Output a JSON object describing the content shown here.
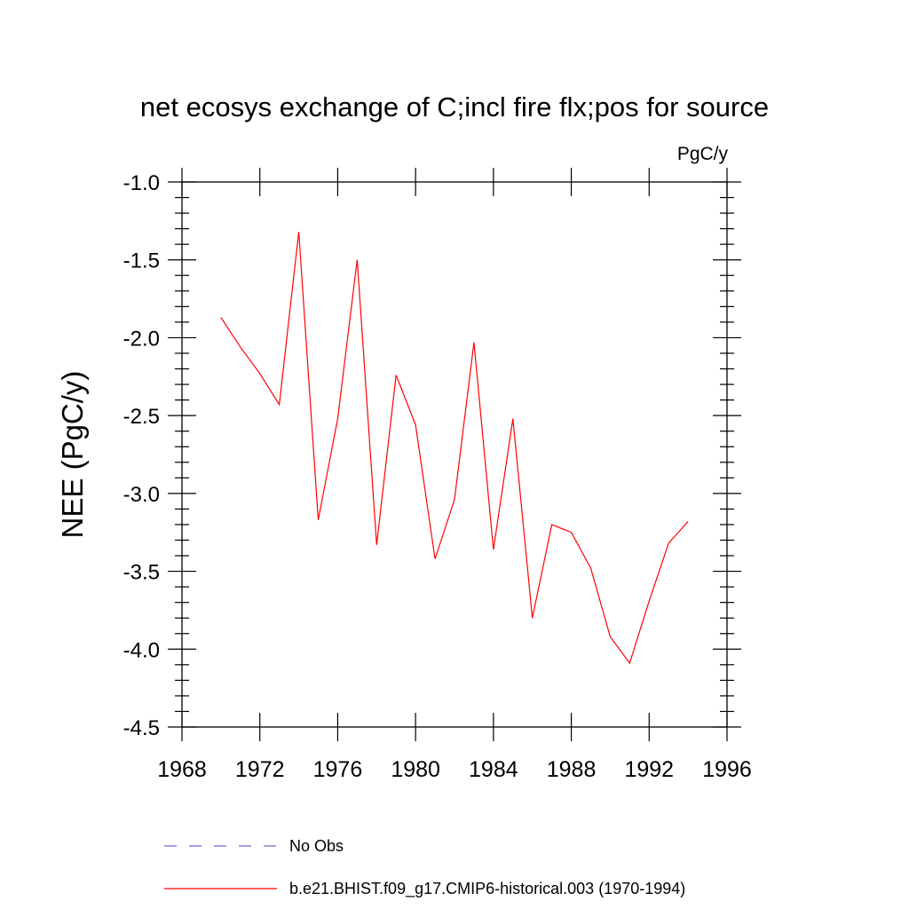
{
  "chart_data": {
    "type": "line",
    "title": "net ecosys exchange of C;incl fire flx;pos for source",
    "units_label": "PgC/y",
    "ylabel": "NEE  (PgC/y)",
    "xlabel": "",
    "xlim": [
      1968,
      1996
    ],
    "ylim": [
      -4.5,
      -1.0
    ],
    "x_ticks": [
      1968,
      1972,
      1976,
      1980,
      1984,
      1988,
      1992,
      1996
    ],
    "x_tick_labels": [
      "1968",
      "1972",
      "1976",
      "1980",
      "1984",
      "1988",
      "1992",
      "1996"
    ],
    "y_ticks": [
      -1.0,
      -1.5,
      -2.0,
      -2.5,
      -3.0,
      -3.5,
      -4.0,
      -4.5
    ],
    "y_tick_labels": [
      "-1.0",
      "-1.5",
      "-2.0",
      "-2.5",
      "-3.0",
      "-3.5",
      "-4.0",
      "-4.5"
    ],
    "grid": false,
    "legend_position": "bottom",
    "series": [
      {
        "name": "No Obs",
        "color": "#6a6ad0",
        "style": "dashed",
        "x": [],
        "values": []
      },
      {
        "name": "b.e21.BHIST.f09_g17.CMIP6-historical.003 (1970-1994)",
        "color": "#ff0000",
        "style": "solid",
        "x": [
          1970,
          1971,
          1972,
          1973,
          1974,
          1975,
          1976,
          1977,
          1978,
          1979,
          1980,
          1981,
          1982,
          1983,
          1984,
          1985,
          1986,
          1987,
          1988,
          1989,
          1990,
          1991,
          1992,
          1993,
          1994
        ],
        "values": [
          -1.87,
          -2.06,
          -2.23,
          -2.43,
          -1.32,
          -3.17,
          -2.52,
          -1.5,
          -3.33,
          -2.24,
          -2.56,
          -3.42,
          -3.04,
          -2.03,
          -3.36,
          -2.52,
          -3.8,
          -3.2,
          -3.25,
          -3.48,
          -3.92,
          -4.09,
          -3.69,
          -3.32,
          -3.18
        ]
      }
    ]
  }
}
